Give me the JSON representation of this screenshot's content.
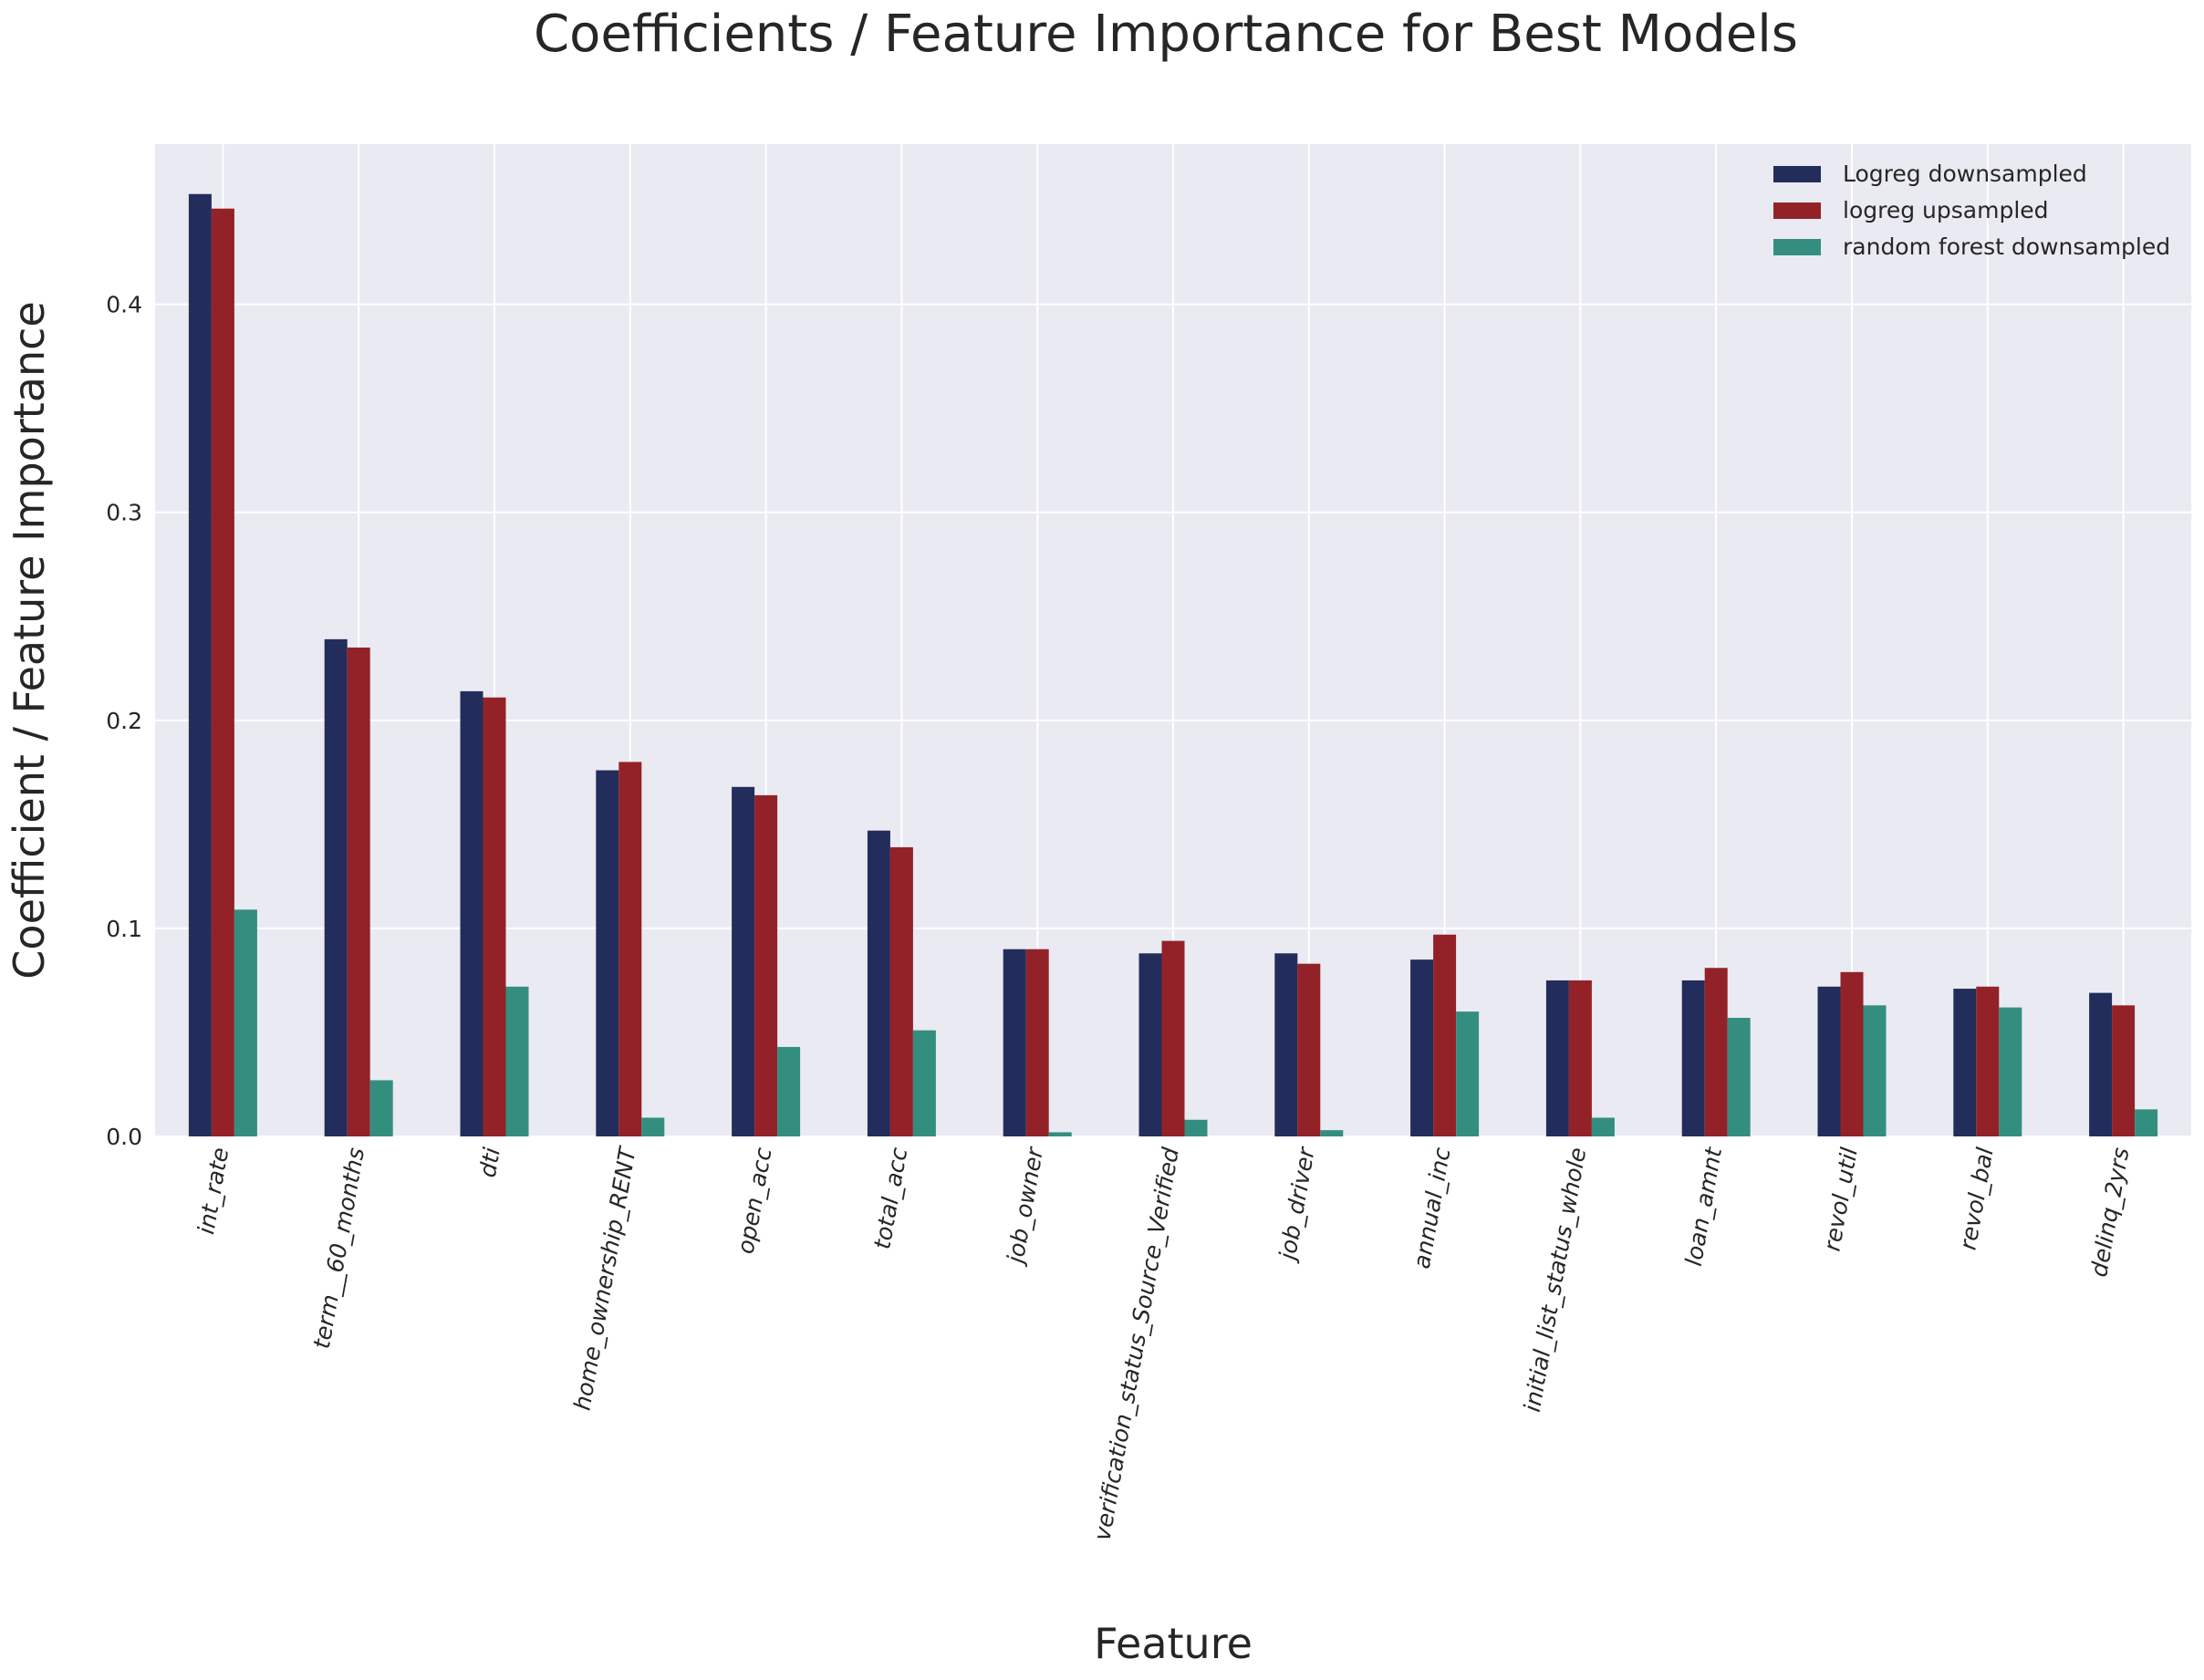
{
  "chart_data": {
    "type": "bar",
    "title": "Coefficients / Feature Importance for Best Models",
    "xlabel": "Feature",
    "ylabel": "Coefficient / Feature Importance",
    "ylim": [
      0,
      0.477
    ],
    "yticks": [
      "0.0",
      "0.1",
      "0.2",
      "0.3",
      "0.4"
    ],
    "grid": true,
    "legend_position": "top-right",
    "categories": [
      "int_rate",
      "term__60_months",
      "dti",
      "home_ownership_RENT",
      "open_acc",
      "total_acc",
      "job_owner",
      "verification_status_Source_Verified",
      "job_driver",
      "annual_inc",
      "initial_list_status_whole",
      "loan_amnt",
      "revol_util",
      "revol_bal",
      "delinq_2yrs"
    ],
    "series": [
      {
        "name": "Logreg downsampled",
        "color": "#232d5c",
        "values": [
          0.453,
          0.239,
          0.214,
          0.176,
          0.168,
          0.147,
          0.09,
          0.088,
          0.088,
          0.085,
          0.075,
          0.075,
          0.072,
          0.071,
          0.069
        ]
      },
      {
        "name": "logreg upsampled",
        "color": "#932228",
        "values": [
          0.446,
          0.235,
          0.211,
          0.18,
          0.164,
          0.139,
          0.09,
          0.094,
          0.083,
          0.097,
          0.075,
          0.081,
          0.079,
          0.072,
          0.063
        ]
      },
      {
        "name": "random forest downsampled",
        "color": "#348e80",
        "values": [
          0.109,
          0.027,
          0.072,
          0.009,
          0.043,
          0.051,
          0.002,
          0.008,
          0.003,
          0.06,
          0.009,
          0.057,
          0.063,
          0.062,
          0.013
        ]
      }
    ]
  }
}
